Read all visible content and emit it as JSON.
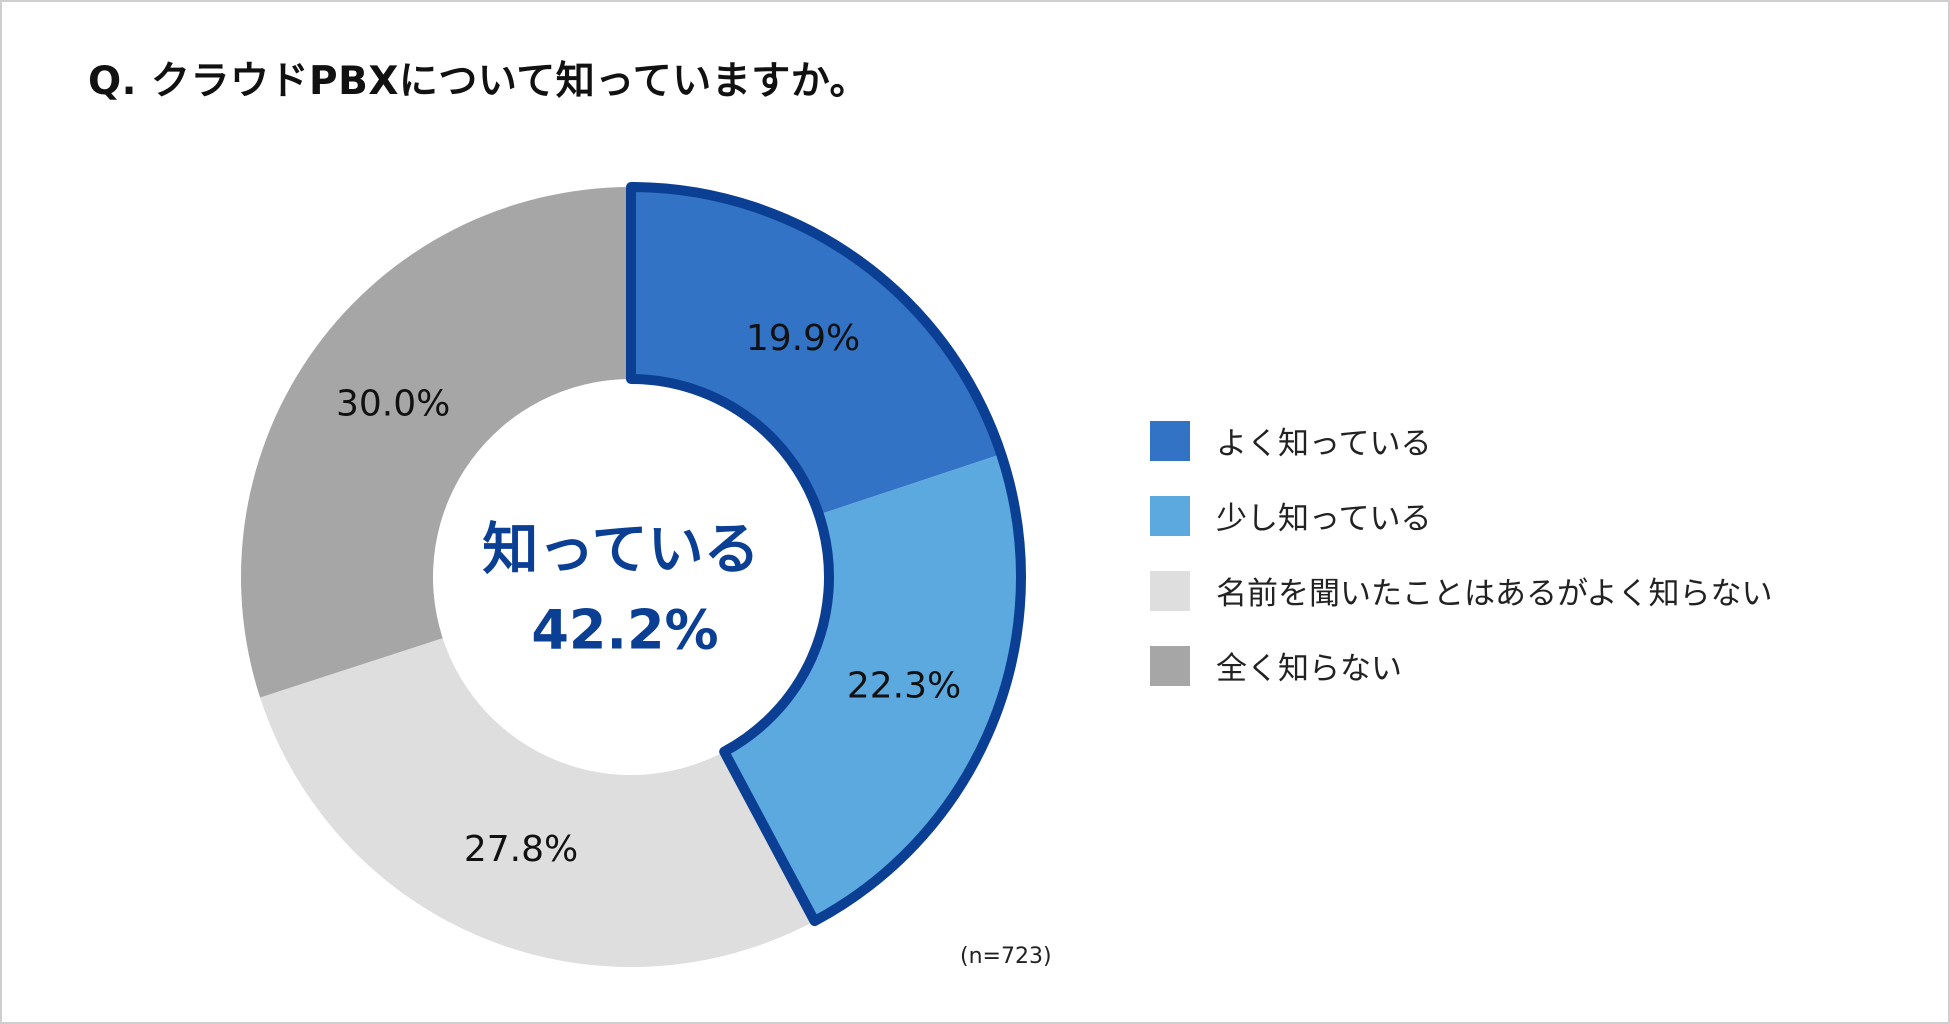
{
  "title": "Q. クラウドPBXについて知っていますか。",
  "chart_data": {
    "type": "pie",
    "categories": [
      "よく知っている",
      "少し知っている",
      "名前を聞いたことはあるがよく知らない",
      "全く知らない"
    ],
    "values": [
      19.9,
      22.3,
      27.8,
      30.0
    ],
    "value_labels": [
      "19.9%",
      "22.3%",
      "27.8%",
      "30.0%"
    ],
    "colors": [
      "#3273C5",
      "#5CA9E0",
      "#DEDEDE",
      "#A6A6A6"
    ],
    "highlight_color": "#0B3F94",
    "highlight_group": [
      0,
      1
    ],
    "center_label": {
      "line1": "知っている",
      "line2": "42.2%"
    },
    "legend_position": "right",
    "note": "(n=723)"
  }
}
